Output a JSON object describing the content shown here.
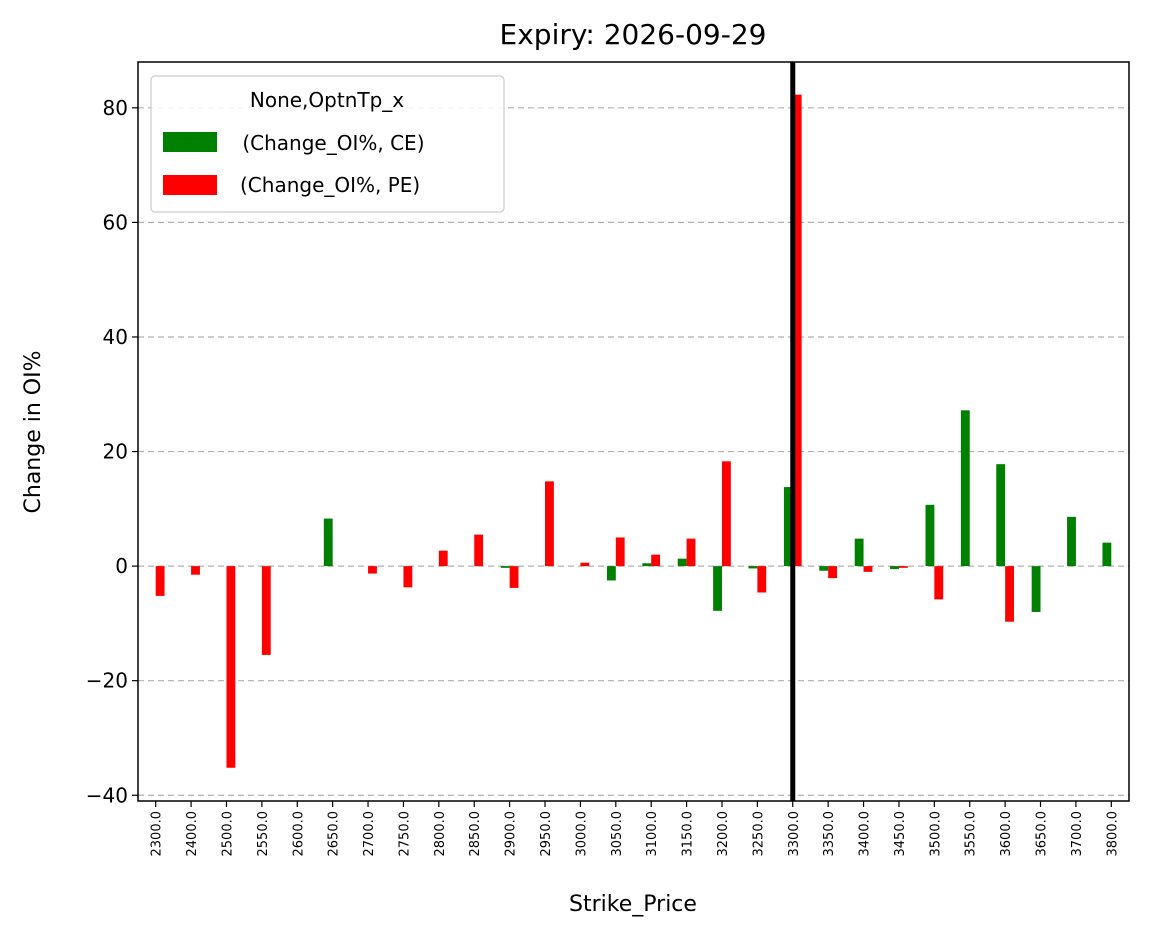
{
  "chart_data": {
    "type": "bar",
    "title": "Expiry: 2026-09-29",
    "xlabel": "Strike_Price",
    "ylabel": "Change in OI%",
    "ylim": [
      -41,
      88
    ],
    "yticks": [
      -40,
      -20,
      0,
      20,
      40,
      60,
      80
    ],
    "ytick_labels": [
      "−40",
      "−20",
      "0",
      "20",
      "40",
      "60",
      "80"
    ],
    "grid": "horizontal dashed",
    "legend_position": "top-left",
    "legend_title": "None,OptnTp_x",
    "categories": [
      "2300.0",
      "2400.0",
      "2500.0",
      "2550.0",
      "2600.0",
      "2650.0",
      "2700.0",
      "2750.0",
      "2800.0",
      "2850.0",
      "2900.0",
      "2950.0",
      "3000.0",
      "3050.0",
      "3100.0",
      "3150.0",
      "3200.0",
      "3250.0",
      "3300.0",
      "3350.0",
      "3400.0",
      "3450.0",
      "3500.0",
      "3550.0",
      "3600.0",
      "3650.0",
      "3700.0",
      "3800.0"
    ],
    "series": [
      {
        "name": " (Change_OI%, CE)",
        "color": "#008000",
        "values": [
          0,
          0,
          0,
          0,
          0,
          8.3,
          0,
          0,
          0,
          0,
          -0.3,
          0,
          0,
          -2.5,
          0.5,
          1.3,
          -7.8,
          -0.4,
          13.8,
          -0.8,
          4.8,
          -0.5,
          10.7,
          27.2,
          17.8,
          -8.0,
          8.6,
          4.1
        ]
      },
      {
        "name": "(Change_OI%, PE)",
        "color": "#ff0000",
        "values": [
          -5.2,
          -1.5,
          -35.2,
          -15.5,
          0,
          0,
          -1.3,
          -3.7,
          2.7,
          5.5,
          -3.8,
          14.8,
          0.6,
          5.0,
          2.0,
          4.8,
          18.3,
          -4.6,
          82.3,
          -2.1,
          -1.0,
          -0.3,
          -5.8,
          0,
          -9.7,
          0,
          0,
          0
        ]
      }
    ],
    "vline": {
      "category": "3300.0",
      "color": "#000000"
    }
  }
}
